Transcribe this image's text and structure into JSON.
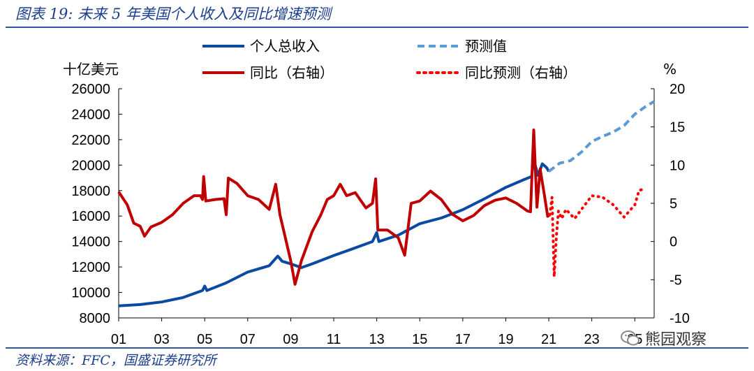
{
  "caption": "图表 19: 未来 5 年美国个人收入及同比增速预测",
  "source": "资料来源：FFC，国盛证券研究所",
  "watermark": "熊园观察",
  "chart_data": {
    "type": "line",
    "left_axis": {
      "unit": "十亿美元",
      "ylim": [
        8000,
        26000
      ],
      "ticks": [
        8000,
        10000,
        12000,
        14000,
        16000,
        18000,
        20000,
        22000,
        24000,
        26000
      ]
    },
    "right_axis": {
      "unit": "%",
      "ylim": [
        -10,
        20
      ],
      "ticks": [
        -10,
        -5,
        0,
        5,
        10,
        15,
        20
      ]
    },
    "x_axis": {
      "xlim": [
        2001,
        2025.9
      ],
      "tick_labels": [
        "01",
        "03",
        "05",
        "07",
        "09",
        "11",
        "13",
        "15",
        "17",
        "19",
        "21",
        "23",
        "25"
      ],
      "tick_years": [
        2001,
        2003,
        2005,
        2007,
        2009,
        2011,
        2013,
        2015,
        2017,
        2019,
        2021,
        2023,
        2025
      ]
    },
    "legend": [
      {
        "label": "个人总收入",
        "style": "solid",
        "color": "#0b4aa2"
      },
      {
        "label": "预测值",
        "style": "dashed",
        "color": "#5b9bd5"
      },
      {
        "label": "同比（右轴）",
        "style": "solid",
        "color": "#c00000"
      },
      {
        "label": "同比预测（右轴）",
        "style": "dotted",
        "color": "#ff0000"
      }
    ],
    "series": [
      {
        "name": "个人总收入",
        "axis": "left",
        "color": "#0b4aa2",
        "style": "solid",
        "points": [
          [
            2001.0,
            8950
          ],
          [
            2002.0,
            9050
          ],
          [
            2003.0,
            9250
          ],
          [
            2004.0,
            9600
          ],
          [
            2004.9,
            10150
          ],
          [
            2005.0,
            10500
          ],
          [
            2005.1,
            10150
          ],
          [
            2006.0,
            10750
          ],
          [
            2007.0,
            11600
          ],
          [
            2008.0,
            12100
          ],
          [
            2008.4,
            12850
          ],
          [
            2008.6,
            12450
          ],
          [
            2009.0,
            12250
          ],
          [
            2009.5,
            11950
          ],
          [
            2010.0,
            12250
          ],
          [
            2011.0,
            12900
          ],
          [
            2012.0,
            13500
          ],
          [
            2012.8,
            14000
          ],
          [
            2013.0,
            14700
          ],
          [
            2013.1,
            14000
          ],
          [
            2014.0,
            14500
          ],
          [
            2015.0,
            15400
          ],
          [
            2016.0,
            15850
          ],
          [
            2017.0,
            16500
          ],
          [
            2018.0,
            17350
          ],
          [
            2019.0,
            18250
          ],
          [
            2019.9,
            18900
          ],
          [
            2020.2,
            19100
          ],
          [
            2020.3,
            20400
          ],
          [
            2020.5,
            19200
          ],
          [
            2020.7,
            20100
          ],
          [
            2020.9,
            19800
          ],
          [
            2021.0,
            19500
          ]
        ]
      },
      {
        "name": "预测值",
        "axis": "left",
        "color": "#5b9bd5",
        "style": "dashed",
        "points": [
          [
            2021.0,
            19500
          ],
          [
            2021.5,
            20150
          ],
          [
            2022.0,
            20350
          ],
          [
            2022.5,
            21000
          ],
          [
            2023.0,
            21850
          ],
          [
            2023.5,
            22250
          ],
          [
            2024.0,
            22600
          ],
          [
            2024.5,
            23100
          ],
          [
            2025.0,
            24000
          ],
          [
            2025.5,
            24600
          ],
          [
            2025.9,
            25000
          ]
        ]
      },
      {
        "name": "同比（右轴）",
        "axis": "right",
        "color": "#c00000",
        "style": "solid",
        "points": [
          [
            2001.0,
            6.5
          ],
          [
            2001.4,
            4.8
          ],
          [
            2001.7,
            2.4
          ],
          [
            2002.0,
            2.0
          ],
          [
            2002.2,
            0.7
          ],
          [
            2002.5,
            1.9
          ],
          [
            2003.0,
            2.5
          ],
          [
            2003.5,
            3.5
          ],
          [
            2004.0,
            5.0
          ],
          [
            2004.5,
            6.0
          ],
          [
            2004.8,
            6.0
          ],
          [
            2004.9,
            5.5
          ],
          [
            2004.95,
            8.5
          ],
          [
            2005.05,
            5.3
          ],
          [
            2005.5,
            5.5
          ],
          [
            2005.9,
            5.6
          ],
          [
            2006.0,
            3.5
          ],
          [
            2006.1,
            8.3
          ],
          [
            2006.5,
            7.6
          ],
          [
            2007.0,
            6.0
          ],
          [
            2007.5,
            5.5
          ],
          [
            2008.0,
            4.2
          ],
          [
            2008.3,
            7.5
          ],
          [
            2008.5,
            3.5
          ],
          [
            2009.0,
            -2.5
          ],
          [
            2009.2,
            -5.6
          ],
          [
            2009.5,
            -2.5
          ],
          [
            2010.0,
            1.3
          ],
          [
            2010.4,
            3.5
          ],
          [
            2010.7,
            5.5
          ],
          [
            2011.0,
            6.0
          ],
          [
            2011.3,
            7.5
          ],
          [
            2011.6,
            6.0
          ],
          [
            2012.0,
            6.4
          ],
          [
            2012.5,
            4.4
          ],
          [
            2012.8,
            5.0
          ],
          [
            2012.95,
            8.2
          ],
          [
            2013.05,
            1.5
          ],
          [
            2013.5,
            1.5
          ],
          [
            2014.0,
            0.5
          ],
          [
            2014.3,
            -1.8
          ],
          [
            2014.6,
            5.0
          ],
          [
            2015.0,
            5.3
          ],
          [
            2015.5,
            6.6
          ],
          [
            2016.0,
            5.5
          ],
          [
            2016.5,
            3.6
          ],
          [
            2017.0,
            2.7
          ],
          [
            2017.5,
            3.4
          ],
          [
            2018.0,
            4.7
          ],
          [
            2018.5,
            5.4
          ],
          [
            2019.0,
            5.7
          ],
          [
            2019.5,
            5.0
          ],
          [
            2020.0,
            4.0
          ],
          [
            2020.15,
            3.9
          ],
          [
            2020.3,
            14.6
          ],
          [
            2020.45,
            4.5
          ],
          [
            2020.6,
            9.5
          ],
          [
            2020.8,
            6.0
          ],
          [
            2020.95,
            3.3
          ],
          [
            2021.05,
            3.5
          ]
        ]
      },
      {
        "name": "同比预测（右轴）",
        "axis": "right",
        "color": "#ff0000",
        "style": "dotted",
        "points": [
          [
            2021.05,
            3.5
          ],
          [
            2021.15,
            5.8
          ],
          [
            2021.25,
            -4.6
          ],
          [
            2021.35,
            0.5
          ],
          [
            2021.45,
            4.0
          ],
          [
            2021.6,
            3.0
          ],
          [
            2021.8,
            4.2
          ],
          [
            2022.2,
            3.0
          ],
          [
            2022.6,
            4.5
          ],
          [
            2023.0,
            6.0
          ],
          [
            2023.5,
            5.8
          ],
          [
            2024.0,
            4.8
          ],
          [
            2024.5,
            3.2
          ],
          [
            2025.0,
            4.8
          ],
          [
            2025.2,
            6.7
          ],
          [
            2025.5,
            6.9
          ]
        ]
      }
    ]
  }
}
